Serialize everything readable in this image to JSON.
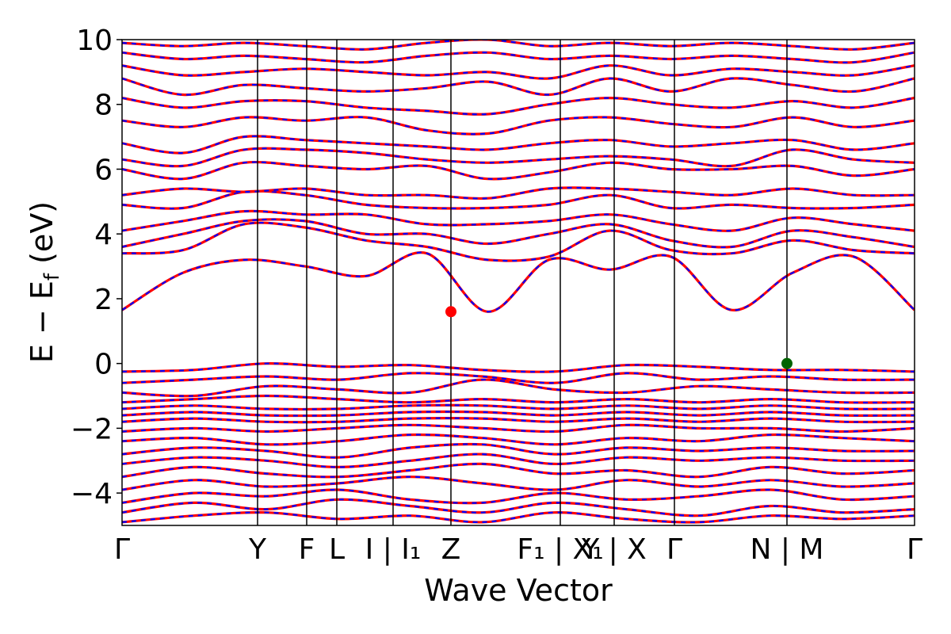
{
  "chart_data": {
    "type": "line",
    "title": "",
    "xlabel": "Wave Vector",
    "ylabel": "E − E_f (eV)",
    "ylabel_main": "E − E",
    "ylabel_sub": "f",
    "ylabel_unit": " (eV)",
    "ylim": [
      -5,
      10
    ],
    "yticks": [
      {
        "v": 10,
        "label": "10"
      },
      {
        "v": 8,
        "label": "8"
      },
      {
        "v": 6,
        "label": "6"
      },
      {
        "v": 4,
        "label": "4"
      },
      {
        "v": 2,
        "label": "2"
      },
      {
        "v": 0,
        "label": "0"
      },
      {
        "v": -2,
        "label": "−2"
      },
      {
        "v": -4,
        "label": "−4"
      }
    ],
    "xlim": [
      0,
      1
    ],
    "kpoints": [
      {
        "x": 0.0,
        "label": "Γ"
      },
      {
        "x": 0.171,
        "label": "Y"
      },
      {
        "x": 0.233,
        "label": "F"
      },
      {
        "x": 0.271,
        "label": "L"
      },
      {
        "x": 0.342,
        "label": "I | I₁"
      },
      {
        "x": 0.415,
        "label": "Z"
      },
      {
        "x": 0.553,
        "label": "F₁ | X₁"
      },
      {
        "x": 0.621,
        "label": "Y | X"
      },
      {
        "x": 0.697,
        "label": "Γ"
      },
      {
        "x": 0.839,
        "label": "N | M"
      },
      {
        "x": 1.0,
        "label": "Γ"
      }
    ],
    "series_style": {
      "primary_color": "#ff0000",
      "secondary_color": "#0000ff"
    },
    "cbm": {
      "x": 0.415,
      "y": 1.6,
      "color": "#ff0000"
    },
    "vbm": {
      "x": 0.839,
      "y": 0.0,
      "color": "#006400"
    },
    "bands": [
      [
        -4.9,
        -4.7,
        -4.6,
        -4.8,
        -4.7,
        -4.9,
        -4.6,
        -4.8,
        -4.9,
        -4.7,
        -4.8,
        -4.7
      ],
      [
        -4.6,
        -4.3,
        -4.5,
        -4.2,
        -4.4,
        -4.6,
        -4.3,
        -4.5,
        -4.7,
        -4.4,
        -4.6,
        -4.5
      ],
      [
        -4.3,
        -4.0,
        -4.1,
        -3.9,
        -4.2,
        -4.3,
        -4.0,
        -4.2,
        -4.1,
        -3.9,
        -4.2,
        -4.1
      ],
      [
        -3.9,
        -3.6,
        -3.8,
        -3.7,
        -3.5,
        -3.7,
        -3.9,
        -3.6,
        -3.8,
        -3.6,
        -3.8,
        -3.7
      ],
      [
        -3.5,
        -3.2,
        -3.4,
        -3.5,
        -3.3,
        -3.1,
        -3.4,
        -3.3,
        -3.5,
        -3.2,
        -3.4,
        -3.3
      ],
      [
        -3.1,
        -2.9,
        -3.0,
        -3.2,
        -3.0,
        -2.8,
        -3.1,
        -2.9,
        -3.0,
        -2.9,
        -3.0,
        -3.0
      ],
      [
        -2.8,
        -2.6,
        -2.7,
        -2.9,
        -2.6,
        -2.5,
        -2.8,
        -2.6,
        -2.7,
        -2.6,
        -2.7,
        -2.7
      ],
      [
        -2.4,
        -2.3,
        -2.5,
        -2.4,
        -2.2,
        -2.3,
        -2.5,
        -2.3,
        -2.4,
        -2.2,
        -2.3,
        -2.4
      ],
      [
        -2.1,
        -2.0,
        -2.1,
        -2.0,
        -1.9,
        -2.0,
        -2.1,
        -1.9,
        -2.0,
        -2.0,
        -2.1,
        -2.0
      ],
      [
        -1.8,
        -1.7,
        -1.8,
        -1.8,
        -1.7,
        -1.7,
        -1.8,
        -1.7,
        -1.8,
        -1.7,
        -1.8,
        -1.8
      ],
      [
        -1.6,
        -1.5,
        -1.6,
        -1.6,
        -1.5,
        -1.5,
        -1.6,
        -1.5,
        -1.6,
        -1.5,
        -1.6,
        -1.6
      ],
      [
        -1.4,
        -1.3,
        -1.4,
        -1.4,
        -1.3,
        -1.3,
        -1.4,
        -1.3,
        -1.4,
        -1.3,
        -1.4,
        -1.4
      ],
      [
        -1.2,
        -1.1,
        -1.0,
        -1.1,
        -1.2,
        -1.1,
        -1.2,
        -1.1,
        -1.2,
        -1.1,
        -1.2,
        -1.2
      ],
      [
        -0.9,
        -1.0,
        -0.7,
        -0.8,
        -0.9,
        -0.5,
        -0.8,
        -0.9,
        -0.7,
        -0.8,
        -0.9,
        -0.9
      ],
      [
        -0.6,
        -0.5,
        -0.4,
        -0.5,
        -0.3,
        -0.4,
        -0.6,
        -0.3,
        -0.5,
        -0.4,
        -0.5,
        -0.5
      ],
      [
        -0.25,
        -0.2,
        0.0,
        -0.1,
        -0.05,
        -0.2,
        -0.25,
        -0.05,
        -0.1,
        -0.2,
        -0.2,
        -0.25
      ],
      [
        1.65,
        2.8,
        3.2,
        3.0,
        2.7,
        3.4,
        1.6,
        3.2,
        2.9,
        3.3,
        1.65,
        2.8,
        3.3,
        1.65
      ],
      [
        3.4,
        3.5,
        4.3,
        4.2,
        3.8,
        3.6,
        3.2,
        3.3,
        4.1,
        3.5,
        3.4,
        3.8,
        3.5,
        3.4
      ],
      [
        3.6,
        4.0,
        4.4,
        4.4,
        4.0,
        4.0,
        3.7,
        4.0,
        4.3,
        3.8,
        3.6,
        4.1,
        3.9,
        3.6
      ],
      [
        4.1,
        4.4,
        4.7,
        4.6,
        4.6,
        4.3,
        4.3,
        4.4,
        4.6,
        4.3,
        4.1,
        4.5,
        4.3,
        4.1
      ],
      [
        4.9,
        4.8,
        5.3,
        5.2,
        4.9,
        4.8,
        4.8,
        4.9,
        5.2,
        4.8,
        4.9,
        4.8,
        4.8,
        4.9
      ],
      [
        5.2,
        5.4,
        5.3,
        5.4,
        5.2,
        5.2,
        5.1,
        5.4,
        5.4,
        5.3,
        5.2,
        5.4,
        5.2,
        5.2
      ],
      [
        6.0,
        5.7,
        6.2,
        6.1,
        6.0,
        6.1,
        5.7,
        5.9,
        6.2,
        6.0,
        6.0,
        6.1,
        5.8,
        6.0
      ],
      [
        6.3,
        6.1,
        6.6,
        6.6,
        6.5,
        6.3,
        6.2,
        6.3,
        6.4,
        6.3,
        6.1,
        6.6,
        6.3,
        6.2
      ],
      [
        6.8,
        6.5,
        7.0,
        6.9,
        6.8,
        6.7,
        6.6,
        6.8,
        6.9,
        6.7,
        6.8,
        6.9,
        6.6,
        6.8
      ],
      [
        7.5,
        7.3,
        7.6,
        7.5,
        7.6,
        7.2,
        7.1,
        7.5,
        7.6,
        7.4,
        7.3,
        7.6,
        7.3,
        7.5
      ],
      [
        8.2,
        7.9,
        8.1,
        8.1,
        7.9,
        7.8,
        7.7,
        8.0,
        8.2,
        8.0,
        7.9,
        8.1,
        7.9,
        8.2
      ],
      [
        8.8,
        8.3,
        8.6,
        8.5,
        8.4,
        8.5,
        8.7,
        8.3,
        8.8,
        8.4,
        8.8,
        8.6,
        8.4,
        8.8
      ],
      [
        9.2,
        8.9,
        9.0,
        9.1,
        9.0,
        8.9,
        9.0,
        8.8,
        9.2,
        8.9,
        9.1,
        9.0,
        8.9,
        9.2
      ],
      [
        9.6,
        9.4,
        9.5,
        9.4,
        9.3,
        9.5,
        9.6,
        9.4,
        9.5,
        9.4,
        9.5,
        9.4,
        9.3,
        9.6
      ],
      [
        9.9,
        9.8,
        9.9,
        9.8,
        9.7,
        9.9,
        10.0,
        9.8,
        9.9,
        9.8,
        9.9,
        9.8,
        9.7,
        9.9
      ]
    ]
  }
}
